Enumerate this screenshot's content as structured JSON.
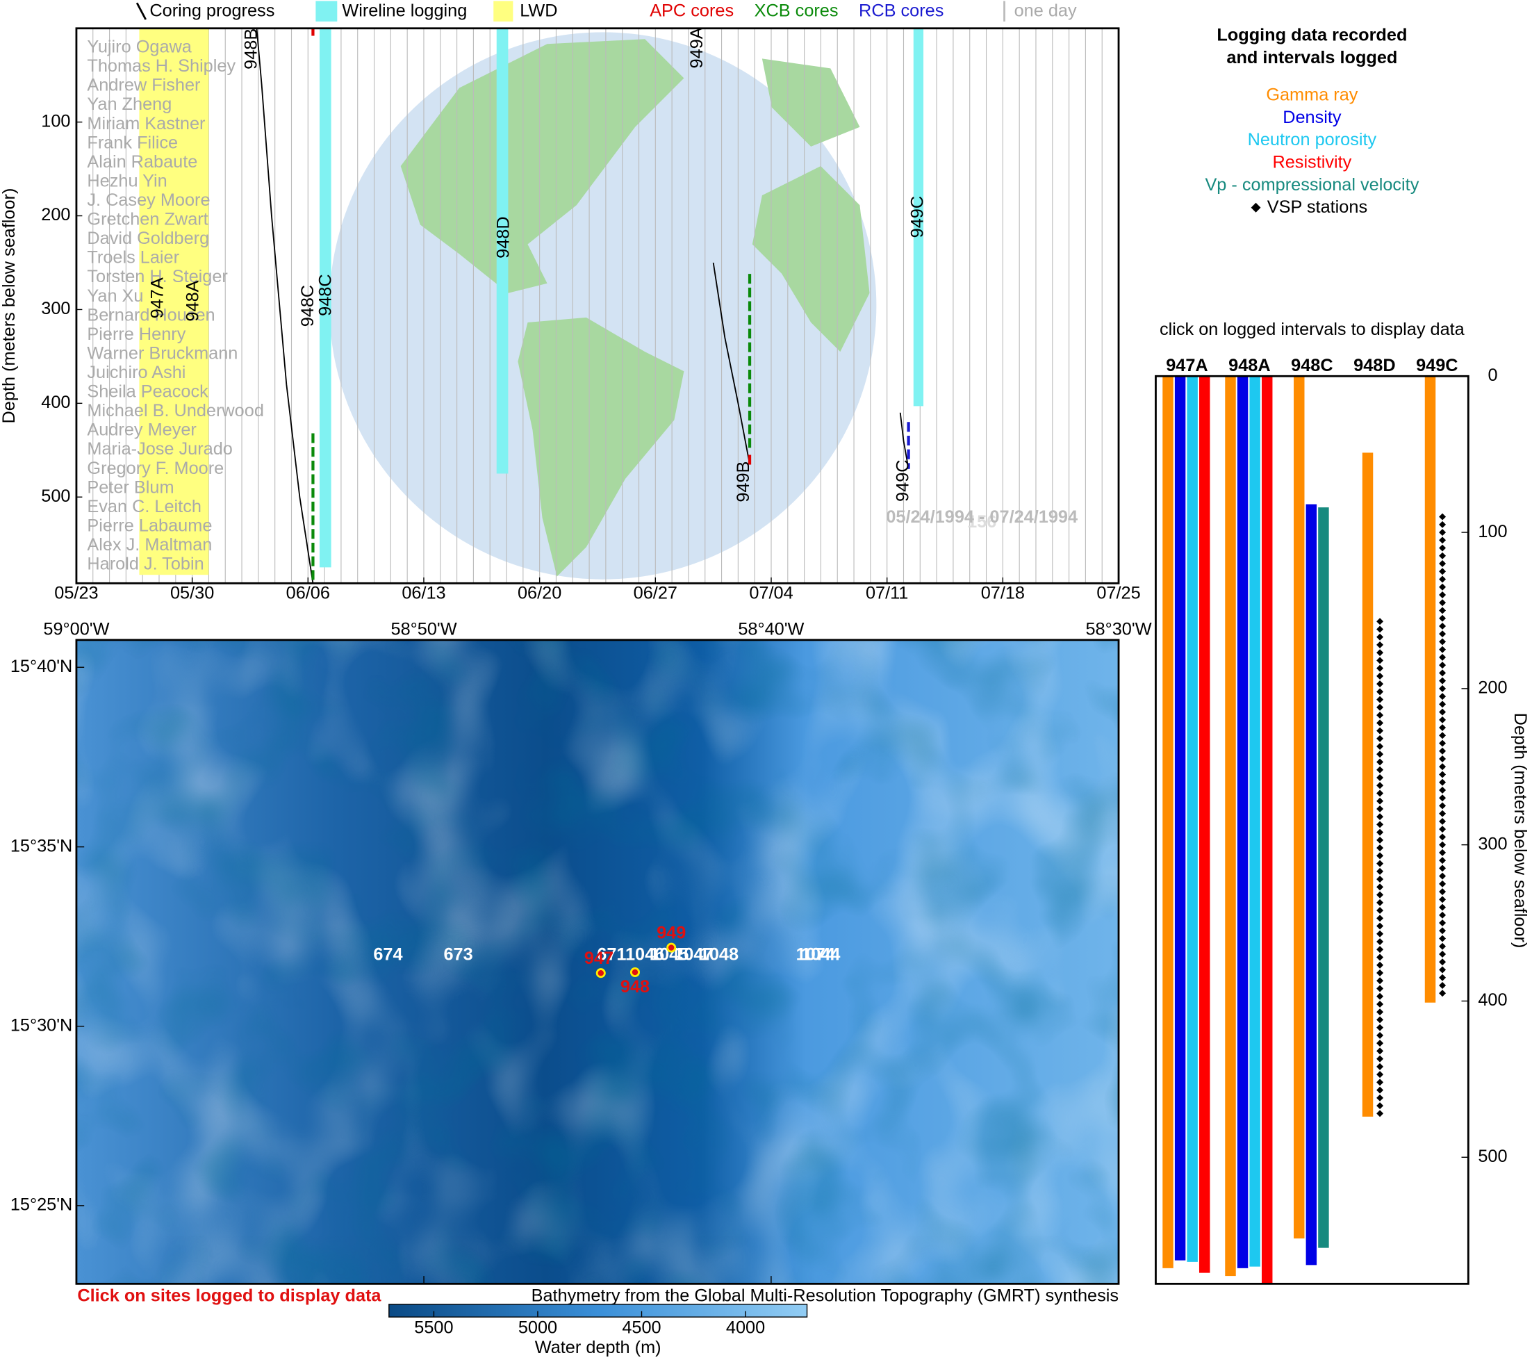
{
  "chart_data": [
    {
      "type": "timeline",
      "legend": [
        {
          "name": "Coring progress",
          "color": "#000000"
        },
        {
          "name": "Wireline logging",
          "color": "#80f2f2"
        },
        {
          "name": "LWD",
          "color": "#ffff80"
        },
        {
          "name": "APC cores",
          "color": "#e00000"
        },
        {
          "name": "XCB cores",
          "color": "#0a8a0a"
        },
        {
          "name": "RCB cores",
          "color": "#1a1ad0"
        },
        {
          "name": "one day",
          "color": "#bbbbbb"
        }
      ],
      "y_label": "Depth (meters below seafloor)",
      "xlim": [
        0,
        63
      ],
      "ylim": [
        0,
        592
      ],
      "xticks": [
        {
          "value": 0,
          "label": "05/23"
        },
        {
          "value": 7,
          "label": "05/30"
        },
        {
          "value": 14,
          "label": "06/06"
        },
        {
          "value": 21,
          "label": "06/13"
        },
        {
          "value": 28,
          "label": "06/20"
        },
        {
          "value": 35,
          "label": "06/27"
        },
        {
          "value": 42,
          "label": "07/04"
        },
        {
          "value": 49,
          "label": "07/11"
        },
        {
          "value": 56,
          "label": "07/18"
        },
        {
          "value": 63,
          "label": "07/25"
        }
      ],
      "yticks": [
        100,
        200,
        300,
        400,
        500
      ],
      "day_grid": true,
      "names": [
        "Yujiro Ogawa",
        "Thomas H. Shipley",
        "Andrew Fisher",
        "Yan Zheng",
        "Miriam Kastner",
        "Frank Filice",
        "Alain Rabaute",
        "Hezhu Yin",
        "J. Casey Moore",
        "Gretchen Zwart",
        "David Goldberg",
        "Troels Laier",
        "Torsten H. Steiger",
        "Yan Xu",
        "Bernard Housen",
        "Pierre Henry",
        "Warner Bruckmann",
        "Juichiro Ashi",
        "Sheila Peacock",
        "Michael B. Underwood",
        "Audrey Meyer",
        "Maria-Jose Jurado",
        "Gregory F. Moore",
        "Peter Blum",
        "Evan C. Leitch",
        "Pierre Labaume",
        "Alex J. Maltman",
        "Harold J. Tobin"
      ],
      "lwd": [
        {
          "x": [
            3.8,
            8.0
          ],
          "depth": [
            0,
            583
          ]
        }
      ],
      "wireline": [
        {
          "x": [
            14.7,
            15.4
          ],
          "depth": [
            0,
            575
          ]
        },
        {
          "x": [
            25.4,
            26.1
          ],
          "depth": [
            0,
            475
          ]
        },
        {
          "x": [
            50.6,
            51.2
          ],
          "depth": [
            0,
            403
          ]
        }
      ],
      "coring": [
        {
          "x": [
            10.9,
            11.2,
            11.8,
            12.7,
            13.5,
            14.3
          ],
          "depth": [
            0,
            60,
            200,
            380,
            500,
            592
          ]
        },
        {
          "x": [
            38.5,
            39.2,
            40.0,
            40.7
          ],
          "depth": [
            250,
            330,
            400,
            465
          ]
        },
        {
          "x": [
            49.8,
            50.0,
            50.3
          ],
          "depth": [
            410,
            440,
            470
          ]
        }
      ],
      "cores": [
        {
          "color": "#e00000",
          "x": 14.3,
          "depth": [
            0,
            8
          ]
        },
        {
          "color": "#0a8a0a",
          "x": 14.3,
          "depth": [
            432,
            592
          ]
        },
        {
          "color": "#0a8a0a",
          "x": 40.7,
          "depth": [
            262,
            450
          ]
        },
        {
          "color": "#e00000",
          "x": 40.7,
          "depth": [
            455,
            468
          ]
        },
        {
          "color": "#1a1ad0",
          "x": 50.3,
          "depth": [
            420,
            470
          ]
        }
      ],
      "hole_labels": [
        "948B",
        "947A",
        "948A",
        "948C",
        "948C",
        "948D",
        "949A",
        "949B",
        "949C",
        "949C"
      ],
      "leg": "156",
      "dates": "05/24/1994 - 07/24/1994"
    },
    {
      "type": "map",
      "xlim": [
        -59,
        -58.5
      ],
      "ylim": [
        15.3804,
        15.6794
      ],
      "xticks": [
        {
          "value": -59,
          "label": "59°00'W"
        },
        {
          "value": -58.8333,
          "label": "58°50'W"
        },
        {
          "value": -58.6667,
          "label": "58°40'W"
        },
        {
          "value": -58.5,
          "label": "58°30'W"
        }
      ],
      "yticks": [
        {
          "value": 15.4167,
          "label": "15°25'N"
        },
        {
          "value": 15.5,
          "label": "15°30'N"
        },
        {
          "value": 15.5833,
          "label": "15°35'N"
        },
        {
          "value": 15.6667,
          "label": "15°40'N"
        }
      ],
      "sites": [
        {
          "label": "947",
          "lon": -58.7484,
          "lat": 15.5247
        },
        {
          "label": "948",
          "lon": -58.732,
          "lat": 15.5251
        },
        {
          "label": "949",
          "lon": -58.7146,
          "lat": 15.5365
        }
      ],
      "other_sites": [
        {
          "label": "674",
          "lon": -58.8505,
          "lat": 15.5329
        },
        {
          "label": "673",
          "lon": -58.8168,
          "lat": 15.5329
        },
        {
          "label": "671",
          "lon": -58.7432,
          "lat": 15.5329
        },
        {
          "label": "1046",
          "lon": -58.7273,
          "lat": 15.5329
        },
        {
          "label": "1045",
          "lon": -58.7156,
          "lat": 15.5329
        },
        {
          "label": "1047",
          "lon": -58.7039,
          "lat": 15.5329
        },
        {
          "label": "1048",
          "lon": -58.6917,
          "lat": 15.5329
        },
        {
          "label": "1074",
          "lon": -58.6454,
          "lat": 15.5329
        },
        {
          "label": "1044",
          "lon": -58.6429,
          "lat": 15.5329
        }
      ],
      "note": "Click on sites logged to display data",
      "source": "Bathymetry from the Global Multi-Resolution Topography (GMRT) synthesis",
      "colorbar_label": "Water depth (m)",
      "clim": [
        5716,
        3704
      ],
      "cticks": [
        5500,
        5000,
        4500,
        4000
      ]
    },
    {
      "type": "interval_bar",
      "title_lines": [
        "Logging data recorded",
        "and intervals logged"
      ],
      "subtitle": "click on logged intervals to display data",
      "y_label": "Depth (meters below seafloor)",
      "categories": [
        "947A",
        "948A",
        "948C",
        "948D",
        "949C"
      ],
      "ylim": [
        0,
        581
      ],
      "yticks": [
        0,
        100,
        200,
        300,
        400,
        500
      ],
      "series": [
        {
          "name": "Gamma ray",
          "color": "#ff8c00",
          "intervals": [
            [
              0,
              571
            ],
            [
              0,
              576
            ],
            [
              0,
              552
            ],
            [
              49,
              474
            ],
            [
              0,
              401
            ]
          ]
        },
        {
          "name": "Density",
          "color": "#0000e6",
          "intervals": [
            [
              0,
              566
            ],
            [
              0,
              571
            ],
            [
              82,
              569
            ],
            null,
            null
          ]
        },
        {
          "name": "Neutron porosity",
          "color": "#1ec8f0",
          "intervals": [
            [
              0,
              567
            ],
            [
              0,
              570
            ],
            null,
            null,
            null
          ]
        },
        {
          "name": "Resistivity",
          "color": "#ff0000",
          "intervals": [
            [
              0,
              574
            ],
            [
              0,
              581
            ],
            null,
            null,
            null
          ]
        },
        {
          "name": "Vp - compressional velocity",
          "color": "#178a7f",
          "intervals": [
            null,
            null,
            [
              84,
              558
            ],
            null,
            null
          ]
        }
      ],
      "vsp": {
        "name": "VSP stations",
        "color": "#000000",
        "stations": [
          [],
          [],
          [],
          [
            157,
            162,
            167,
            172,
            177,
            182,
            187,
            192,
            197,
            202,
            207,
            212,
            217,
            222,
            227,
            232,
            237,
            242,
            247,
            252,
            257,
            262,
            267,
            272,
            277,
            282,
            287,
            292,
            297,
            302,
            307,
            312,
            317,
            322,
            327,
            332,
            337,
            342,
            347,
            352,
            357,
            362,
            367,
            372,
            377,
            382,
            387,
            392,
            397,
            402,
            407,
            412,
            417,
            422,
            427,
            432,
            437,
            442,
            447,
            452,
            457,
            462,
            467,
            472
          ],
          [
            90,
            95,
            100,
            105,
            110,
            115,
            120,
            125,
            130,
            135,
            140,
            145,
            150,
            155,
            160,
            165,
            170,
            175,
            180,
            185,
            190,
            195,
            200,
            205,
            210,
            215,
            220,
            225,
            230,
            235,
            240,
            245,
            250,
            255,
            260,
            265,
            270,
            275,
            280,
            285,
            290,
            295,
            300,
            305,
            310,
            315,
            320,
            325,
            330,
            335,
            340,
            345,
            350,
            355,
            360,
            365,
            370,
            375,
            380,
            385,
            390,
            395
          ]
        ]
      }
    }
  ]
}
